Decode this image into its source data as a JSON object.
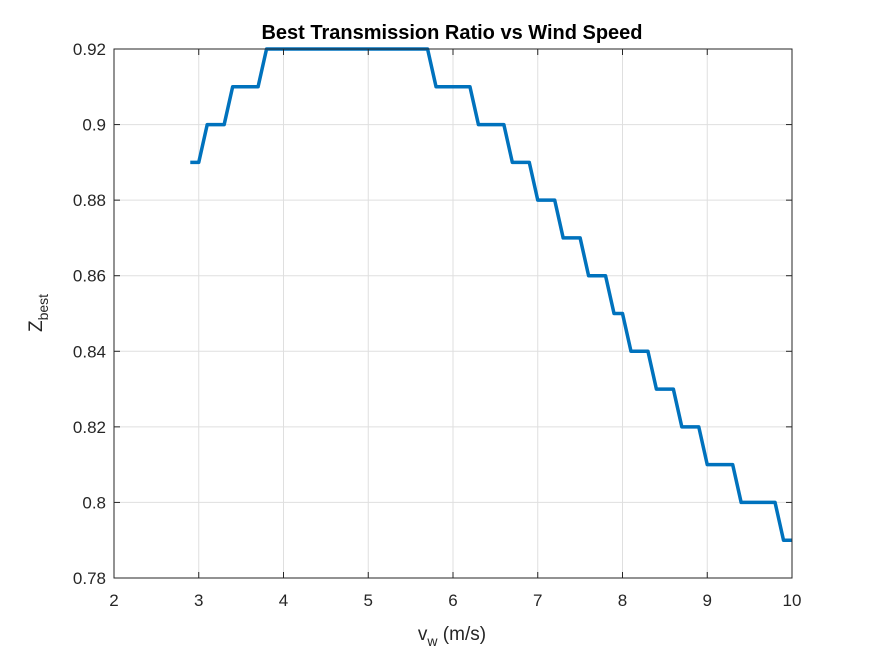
{
  "chart_data": {
    "type": "line",
    "title": "Best Transmission Ratio vs Wind Speed",
    "xlabel_main": "v",
    "xlabel_sub": "w",
    "xlabel_unit": " (m/s)",
    "ylabel_main": "Z",
    "ylabel_sub": "best",
    "xlim": [
      2,
      10
    ],
    "ylim": [
      0.78,
      0.92
    ],
    "xticks": [
      2,
      3,
      4,
      5,
      6,
      7,
      8,
      9,
      10
    ],
    "xtick_labels": [
      "2",
      "3",
      "4",
      "5",
      "6",
      "7",
      "8",
      "9",
      "10"
    ],
    "yticks": [
      0.78,
      0.8,
      0.82,
      0.84,
      0.86,
      0.88,
      0.9,
      0.92
    ],
    "ytick_labels": [
      "0.78",
      "0.8",
      "0.82",
      "0.84",
      "0.86",
      "0.88",
      "0.9",
      "0.92"
    ],
    "grid": true,
    "series": [
      {
        "color": "#0072BD",
        "x": [
          2.9,
          3.0,
          3.1,
          3.3,
          3.4,
          3.7,
          3.8,
          5.7,
          5.8,
          6.2,
          6.3,
          6.6,
          6.7,
          6.9,
          7.0,
          7.2,
          7.3,
          7.5,
          7.6,
          7.8,
          7.9,
          8.0,
          8.1,
          8.3,
          8.4,
          8.6,
          8.7,
          8.9,
          9.0,
          9.3,
          9.4,
          9.8,
          9.9,
          10.0
        ],
        "y": [
          0.89,
          0.89,
          0.9,
          0.9,
          0.91,
          0.91,
          0.92,
          0.92,
          0.91,
          0.91,
          0.9,
          0.9,
          0.89,
          0.89,
          0.88,
          0.88,
          0.87,
          0.87,
          0.86,
          0.86,
          0.85,
          0.85,
          0.84,
          0.84,
          0.83,
          0.83,
          0.82,
          0.82,
          0.81,
          0.81,
          0.8,
          0.8,
          0.79,
          0.79
        ]
      }
    ]
  }
}
